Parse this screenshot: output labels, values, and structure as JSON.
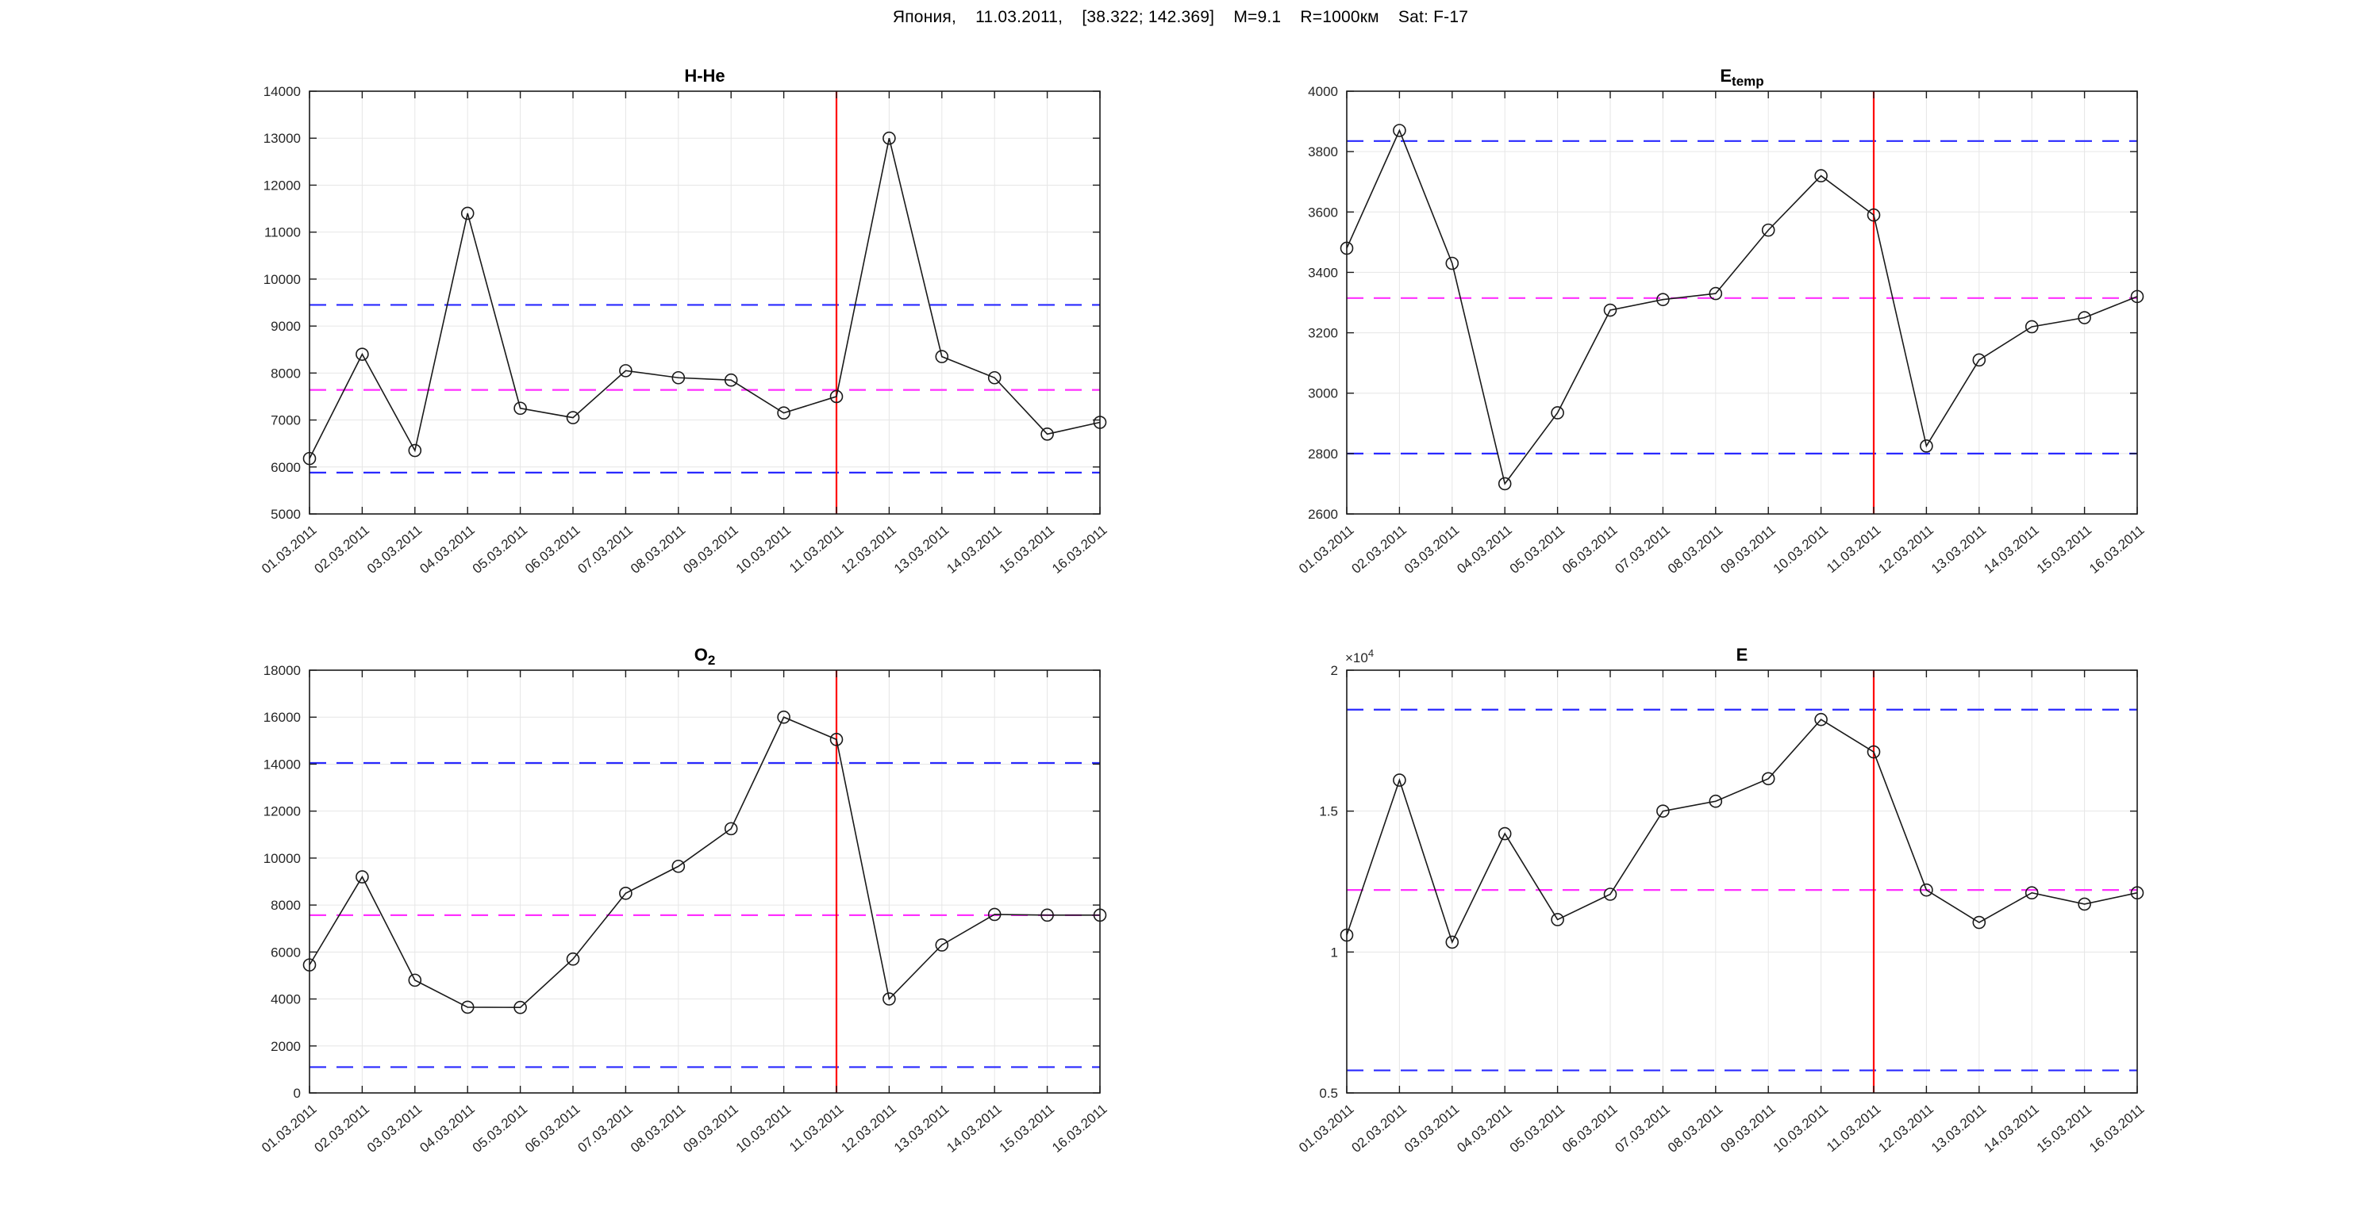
{
  "figure": {
    "title": "Япония,    11.03.2011,    [38.322; 142.369]    M=9.1    R=1000км    Sat: F-17",
    "background": "#ffffff"
  },
  "styles": {
    "series_color": "#1a1a1a",
    "marker_color": "#1a1a1a",
    "bound_color": "#2929ff",
    "mean_color": "#ff30ff",
    "event_color": "#ff0000",
    "grid_color": "#e6e6e6",
    "axis_color": "#1a1a1a",
    "label_color": "#262626"
  },
  "chart_data": [
    {
      "id": "h_he",
      "type": "line",
      "title": {
        "base": "H-He",
        "sub": ""
      },
      "categories": [
        "01.03.2011",
        "02.03.2011",
        "03.03.2011",
        "04.03.2011",
        "05.03.2011",
        "06.03.2011",
        "07.03.2011",
        "08.03.2011",
        "09.03.2011",
        "10.03.2011",
        "11.03.2011",
        "12.03.2011",
        "13.03.2011",
        "14.03.2011",
        "15.03.2011",
        "16.03.2011"
      ],
      "values": [
        6180,
        8400,
        6350,
        11400,
        7250,
        7050,
        8050,
        7900,
        7850,
        7150,
        7500,
        13000,
        8350,
        7900,
        6700,
        6950
      ],
      "ylim": [
        5000,
        14000
      ],
      "ytick_step": 1000,
      "upper_bound": 9450,
      "mean_line": 7640,
      "lower_bound": 5880,
      "event_date": "11.03.2011",
      "grid": true
    },
    {
      "id": "e_temp",
      "type": "line",
      "title": {
        "base": "E",
        "sub": "temp"
      },
      "categories": [
        "01.03.2011",
        "02.03.2011",
        "03.03.2011",
        "04.03.2011",
        "05.03.2011",
        "06.03.2011",
        "07.03.2011",
        "08.03.2011",
        "09.03.2011",
        "10.03.2011",
        "11.03.2011",
        "12.03.2011",
        "13.03.2011",
        "14.03.2011",
        "15.03.2011",
        "16.03.2011"
      ],
      "values": [
        3480,
        3870,
        3430,
        2700,
        2935,
        3275,
        3310,
        3330,
        3540,
        3720,
        3590,
        2825,
        3110,
        3220,
        3250,
        3320
      ],
      "ylim": [
        2600,
        4000
      ],
      "ytick_step": 200,
      "upper_bound": 3835,
      "mean_line": 3315,
      "lower_bound": 2800,
      "event_date": "11.03.2011",
      "grid": true
    },
    {
      "id": "o2",
      "type": "line",
      "title": {
        "base": "O",
        "sub": "2"
      },
      "categories": [
        "01.03.2011",
        "02.03.2011",
        "03.03.2011",
        "04.03.2011",
        "05.03.2011",
        "06.03.2011",
        "07.03.2011",
        "08.03.2011",
        "09.03.2011",
        "10.03.2011",
        "11.03.2011",
        "12.03.2011",
        "13.03.2011",
        "14.03.2011",
        "15.03.2011",
        "16.03.2011"
      ],
      "values": [
        5450,
        9200,
        4800,
        3650,
        3640,
        5700,
        8500,
        9650,
        11250,
        16000,
        15050,
        4000,
        6300,
        7600,
        7570,
        7570
      ],
      "ylim": [
        0,
        18000
      ],
      "ytick_step": 2000,
      "upper_bound": 14050,
      "mean_line": 7570,
      "lower_bound": 1100,
      "event_date": "11.03.2011",
      "grid": true
    },
    {
      "id": "e",
      "type": "line",
      "title": {
        "base": "E",
        "sub": ""
      },
      "categories": [
        "01.03.2011",
        "02.03.2011",
        "03.03.2011",
        "04.03.2011",
        "05.03.2011",
        "06.03.2011",
        "07.03.2011",
        "08.03.2011",
        "09.03.2011",
        "10.03.2011",
        "11.03.2011",
        "12.03.2011",
        "13.03.2011",
        "14.03.2011",
        "15.03.2011",
        "16.03.2011"
      ],
      "values": [
        10600,
        16100,
        10350,
        14200,
        11150,
        12050,
        15000,
        15350,
        16150,
        18250,
        17100,
        12200,
        11050,
        12100,
        11700,
        12100
      ],
      "ylim": [
        5000,
        20000
      ],
      "ytick_step": 5000,
      "y_divisor": 10000,
      "y_exponent": {
        "prefix": "×10",
        "exp": "4"
      },
      "upper_bound": 18600,
      "mean_line": 12200,
      "lower_bound": 5800,
      "event_date": "11.03.2011",
      "grid": true
    }
  ]
}
